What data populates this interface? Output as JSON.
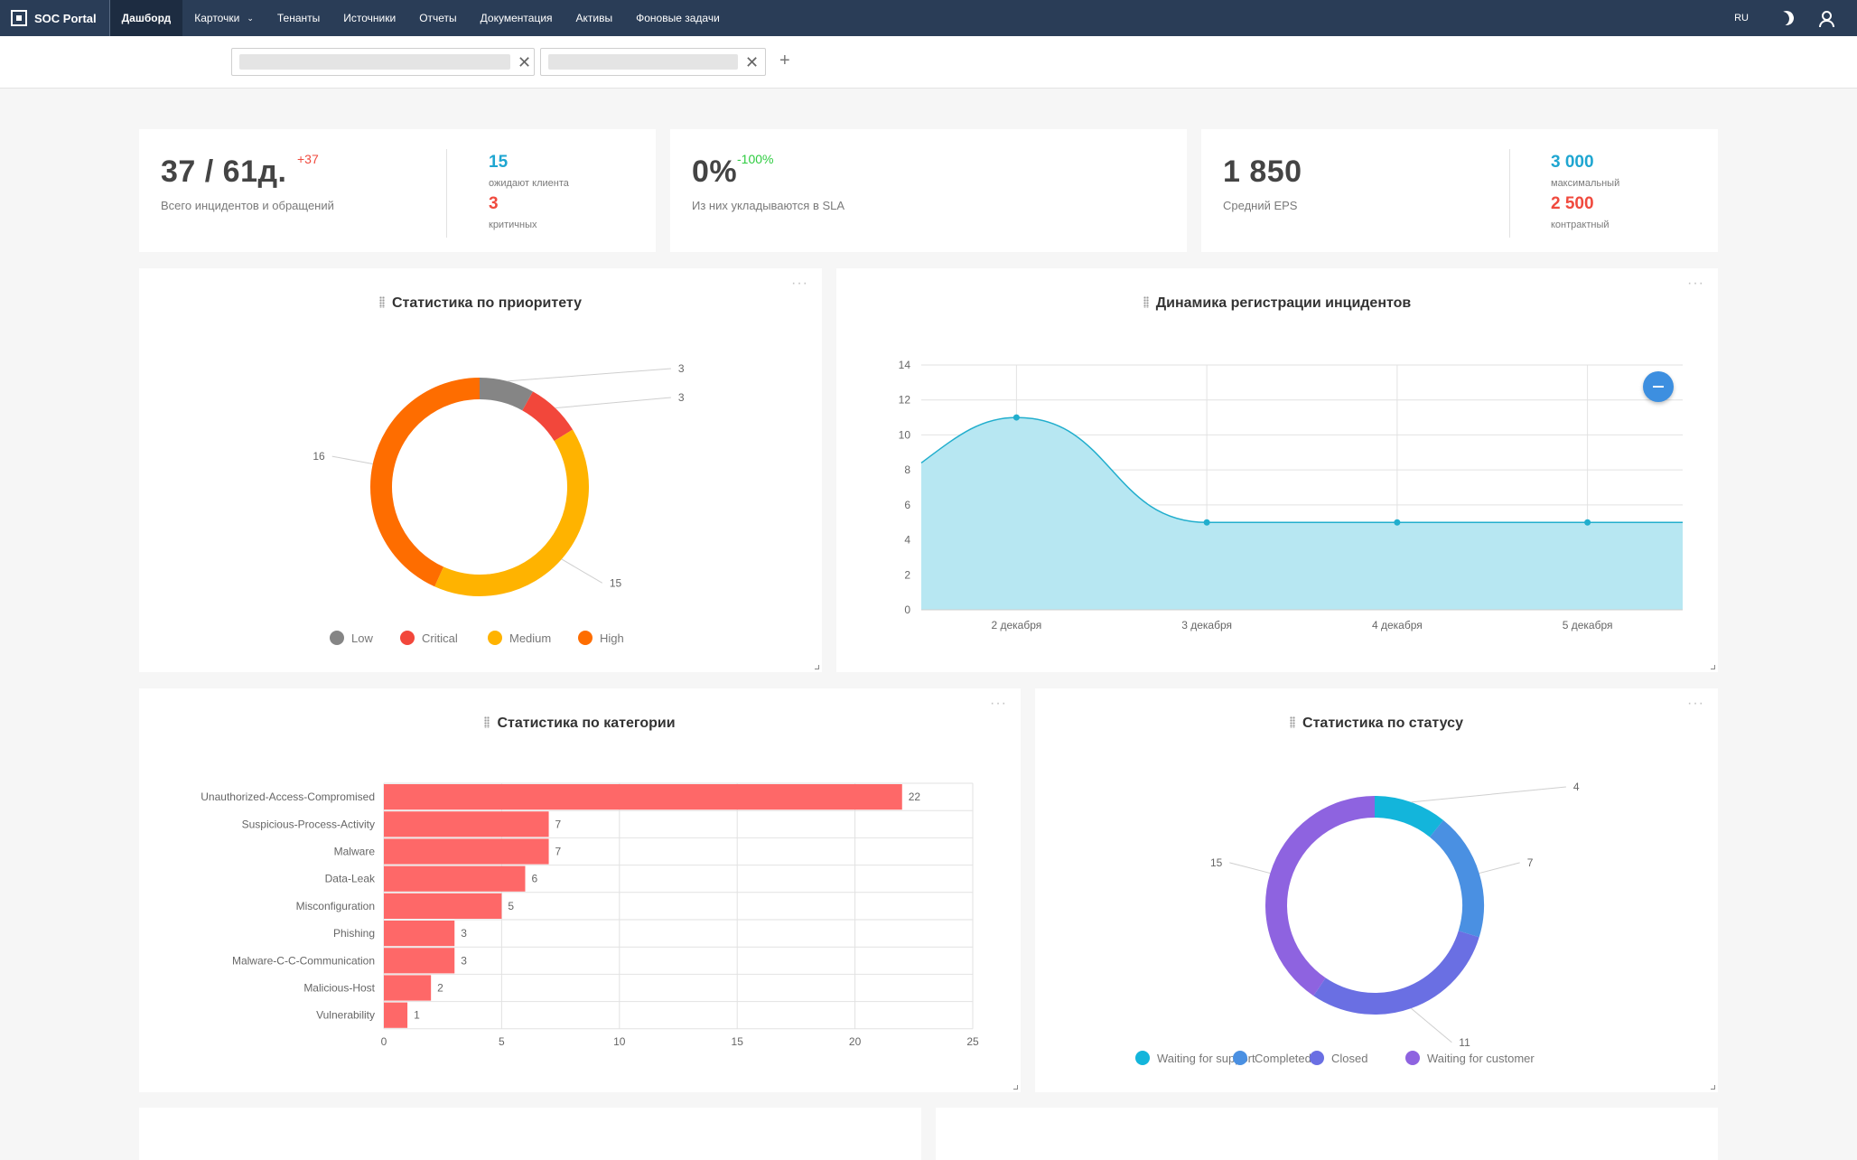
{
  "nav": {
    "brand": "SOC Portal",
    "items": [
      {
        "label": "Дашборд",
        "active": true
      },
      {
        "label": "Карточки",
        "dropdown": true
      },
      {
        "label": "Тенанты"
      },
      {
        "label": "Источники"
      },
      {
        "label": "Отчеты"
      },
      {
        "label": "Документация"
      },
      {
        "label": "Активы"
      },
      {
        "label": "Фоновые задачи"
      }
    ],
    "lang": "RU"
  },
  "filters": {
    "add_label": "+"
  },
  "kpi": {
    "incidents": {
      "value": "37 / 61д.",
      "delta": "+37",
      "caption": "Всего инцидентов и обращений",
      "side": [
        {
          "value": "15",
          "label": "ожидают клиента"
        },
        {
          "value": "3",
          "label": "критичных"
        }
      ]
    },
    "sla": {
      "value": "0%",
      "delta": "-100%",
      "caption": "Из них укладываются в SLA"
    },
    "eps": {
      "value": "1 850",
      "caption": "Средний EPS",
      "side": [
        {
          "value": "3 000",
          "label": "максимальный"
        },
        {
          "value": "2 500",
          "label": "контрактный"
        }
      ]
    }
  },
  "colors": {
    "accent_blue": "#1fa6d1",
    "critical_red": "#f04a3e",
    "positive_green": "#2ecc40"
  },
  "panels": {
    "priority_title": "Статистика по приоритету",
    "dynamics_title": "Динамика регистрации инцидентов",
    "category_title": "Статистика по категории",
    "status_title": "Статистика по статусу",
    "more_label": "···"
  },
  "chart_data": [
    {
      "type": "pie",
      "id": "priority",
      "title": "Статистика по приоритету",
      "legend_position": "bottom",
      "slices": [
        {
          "label": "Low",
          "value": 3,
          "color": "#858585"
        },
        {
          "label": "Critical",
          "value": 3,
          "color": "#f2473b"
        },
        {
          "label": "Medium",
          "value": 15,
          "color": "#ffb300"
        },
        {
          "label": "High",
          "value": 16,
          "color": "#fe6d00"
        }
      ]
    },
    {
      "type": "area",
      "id": "dynamics",
      "title": "Динамика регистрации инцидентов",
      "x": [
        "2 декабря",
        "3 декабря",
        "4 декабря",
        "5 декабря"
      ],
      "values": [
        11,
        5,
        5,
        5
      ],
      "ylim": [
        0,
        14
      ],
      "yticks": [
        0,
        2,
        4,
        6,
        8,
        10,
        12,
        14
      ],
      "grid": true,
      "color": "#21aecd",
      "fill": "#b7e7f2"
    },
    {
      "type": "bar",
      "id": "category",
      "orientation": "horizontal",
      "title": "Статистика по категории",
      "categories": [
        "Unauthorized-Access-Compromised",
        "Suspicious-Process-Activity",
        "Malware",
        "Data-Leak",
        "Misconfiguration",
        "Phishing",
        "Malware-C-C-Communication",
        "Malicious-Host",
        "Vulnerability"
      ],
      "values": [
        22,
        7,
        7,
        6,
        5,
        3,
        3,
        2,
        1
      ],
      "xlim": [
        0,
        25
      ],
      "xticks": [
        0,
        5,
        10,
        15,
        20,
        25
      ],
      "grid": true,
      "color": "#fe6868"
    },
    {
      "type": "pie",
      "id": "status",
      "title": "Статистика по статусу",
      "legend_position": "bottom",
      "slices": [
        {
          "label": "Waiting for support",
          "value": 4,
          "color": "#13b5db"
        },
        {
          "label": "Completed",
          "value": 7,
          "color": "#4a90e2"
        },
        {
          "label": "Closed",
          "value": 11,
          "color": "#6a6fe3"
        },
        {
          "label": "Waiting for customer",
          "value": 15,
          "color": "#8e63e0"
        }
      ]
    }
  ]
}
